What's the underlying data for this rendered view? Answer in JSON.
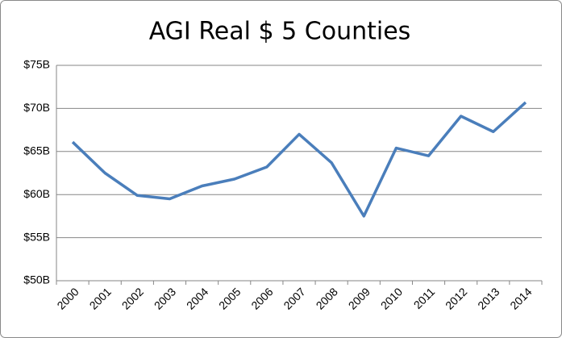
{
  "chart_data": {
    "type": "line",
    "title": "AGI Real $ 5 Counties",
    "categories": [
      "2000",
      "2001",
      "2002",
      "2003",
      "2004",
      "2005",
      "2006",
      "2007",
      "2008",
      "2009",
      "2010",
      "2011",
      "2012",
      "2013",
      "2014"
    ],
    "series": [
      {
        "name": "AGI Real",
        "color": "#4a7ebb",
        "values": [
          66.1,
          62.5,
          59.9,
          59.5,
          61.0,
          61.8,
          63.2,
          67.0,
          63.7,
          57.5,
          65.4,
          64.5,
          69.1,
          67.3,
          70.7
        ]
      }
    ],
    "ylim": [
      50,
      75
    ],
    "yticks": [
      {
        "value": 50,
        "label": "$50B"
      },
      {
        "value": 55,
        "label": "$55B"
      },
      {
        "value": 60,
        "label": "$60B"
      },
      {
        "value": 65,
        "label": "$65B"
      },
      {
        "value": 70,
        "label": "$70B"
      },
      {
        "value": 75,
        "label": "$75B"
      }
    ],
    "grid": true
  }
}
